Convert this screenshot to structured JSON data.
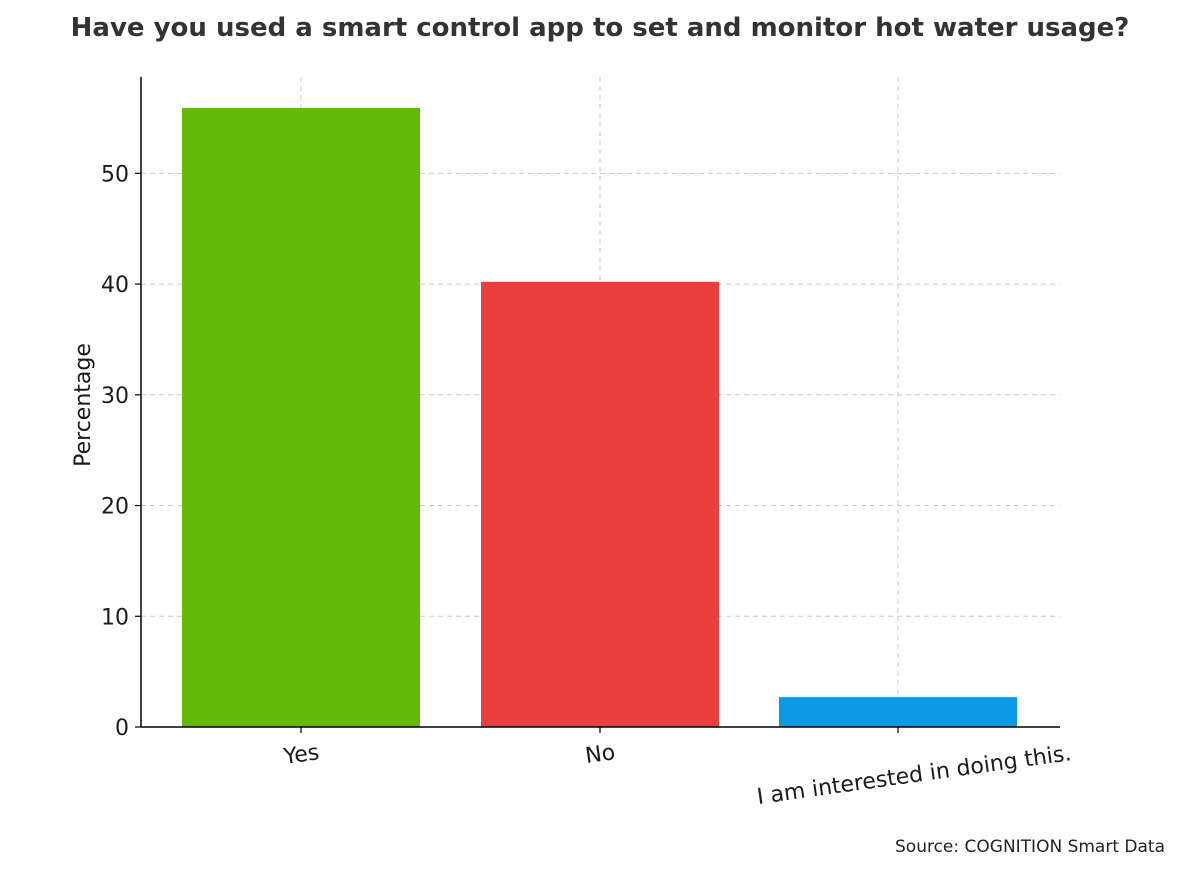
{
  "chart_data": {
    "type": "bar",
    "title": "Have you used a smart control app to set and monitor hot water usage?",
    "xlabel": "",
    "ylabel": "Percentage",
    "categories": [
      "Yes",
      "No",
      "I am interested in doing this."
    ],
    "values": [
      55.9,
      40.2,
      2.7
    ],
    "colors": [
      "#64bb06",
      "#ea3f3f",
      "#0b9ae3"
    ],
    "ylim": [
      0,
      58.7
    ],
    "yticks": [
      0,
      10,
      20,
      30,
      40,
      50
    ],
    "grid": true,
    "legend": "none"
  },
  "source": "Source: COGNITION Smart Data"
}
